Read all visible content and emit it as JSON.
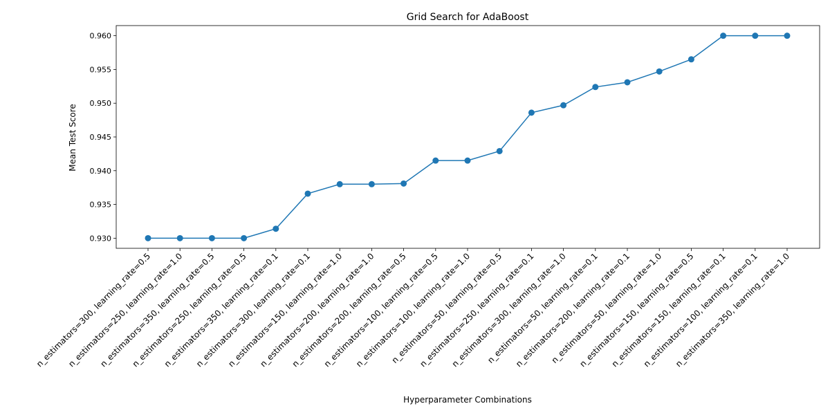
{
  "chart_data": {
    "type": "line",
    "title": "Grid Search for AdaBoost",
    "xlabel": "Hyperparameter Combinations",
    "ylabel": "Mean Test Score",
    "ylim": [
      0.9285,
      0.9615
    ],
    "yticks": [
      0.93,
      0.935,
      0.94,
      0.945,
      0.95,
      0.955,
      0.96
    ],
    "ytick_labels": [
      "0.930",
      "0.935",
      "0.940",
      "0.945",
      "0.950",
      "0.955",
      "0.960"
    ],
    "grid": false,
    "legend": "none",
    "series_color": "#1f77b4",
    "marker": "circle",
    "categories": [
      "n_estimators=300, learning_rate=0.5",
      "n_estimators=250, learning_rate=1.0",
      "n_estimators=350, learning_rate=0.5",
      "n_estimators=250, learning_rate=0.5",
      "n_estimators=350, learning_rate=0.1",
      "n_estimators=300, learning_rate=0.1",
      "n_estimators=150, learning_rate=1.0",
      "n_estimators=200, learning_rate=1.0",
      "n_estimators=200, learning_rate=0.5",
      "n_estimators=100, learning_rate=0.5",
      "n_estimators=100, learning_rate=1.0",
      "n_estimators=50, learning_rate=0.5",
      "n_estimators=250, learning_rate=0.1",
      "n_estimators=300, learning_rate=1.0",
      "n_estimators=50, learning_rate=0.1",
      "n_estimators=200, learning_rate=0.1",
      "n_estimators=50, learning_rate=1.0",
      "n_estimators=150, learning_rate=0.5",
      "n_estimators=150, learning_rate=0.1",
      "n_estimators=100, learning_rate=0.1",
      "n_estimators=350, learning_rate=1.0"
    ],
    "values": [
      0.93,
      0.93,
      0.93,
      0.93,
      0.9314,
      0.9366,
      0.938,
      0.938,
      0.9381,
      0.9415,
      0.9415,
      0.9429,
      0.9486,
      0.9497,
      0.9524,
      0.9531,
      0.9547,
      0.9565,
      0.96,
      0.96,
      0.96
    ]
  }
}
